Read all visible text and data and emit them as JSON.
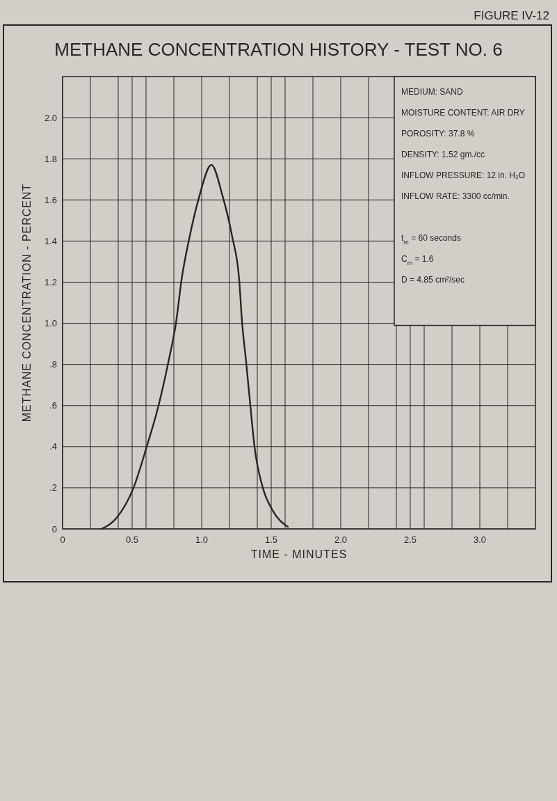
{
  "chart_data": {
    "type": "line",
    "title": "METHANE CONCENTRATION HISTORY - TEST NO. 6",
    "xlabel": "TIME - MINUTES",
    "ylabel": "METHANE CONCENTRATION - PERCENT",
    "annotations": [
      "FIGURE IV-12",
      "MEDIUM: SAND",
      "MOISTURE CONTENT: AIR DRY",
      "POROSITY: 37.8 %",
      "DENSITY: 1.52 gm./cc",
      "INFLOW PRESSURE: 12 in. H₂O",
      "INFLOW RATE: 3300 cc/min.",
      "t$_{m}$ = 60 seconds",
      "C$_{m}$ = 1.6",
      "D = 4.85 cm²/sec"
    ],
    "series": [
      {
        "color": "#2a2522",
        "x": [
          0.28,
          0.39,
          0.51,
          0.605,
          0.69,
          0.76,
          0.815,
          0.855,
          0.91,
          0.98,
          1.07,
          1.15,
          1.22,
          1.27,
          1.29,
          1.32,
          1.35,
          1.38,
          1.44,
          1.51,
          1.62
        ],
        "values": [
          0,
          0.055,
          0.2,
          0.4,
          0.6,
          0.81,
          1.0,
          1.21,
          1.41,
          1.61,
          1.77,
          1.62,
          1.42,
          1.21,
          1.01,
          0.81,
          0.6,
          0.4,
          0.2,
          0.09,
          0.01
        ]
      }
    ],
    "xlim": [
      0,
      3.4
    ],
    "xticks": [
      0,
      {
        "value": 0.2,
        "label": null
      },
      {
        "value": 0.4,
        "label": null
      },
      0.5,
      {
        "value": 0.6,
        "label": null
      },
      {
        "value": 0.8,
        "label": null
      },
      {
        "value": 1,
        "label": "1.0"
      },
      {
        "value": 1.2,
        "label": null
      },
      {
        "value": 1.4,
        "label": null
      },
      1.5,
      {
        "value": 1.6,
        "label": null
      },
      {
        "value": 1.8,
        "label": null
      },
      {
        "value": 2,
        "label": "2.0"
      },
      {
        "value": 2.2,
        "label": null
      },
      {
        "value": 2.4,
        "label": null
      },
      2.5,
      {
        "value": 2.6,
        "label": null
      },
      {
        "value": 2.8,
        "label": null
      },
      {
        "value": 3,
        "label": "3.0"
      },
      {
        "value": 3.2,
        "label": null
      }
    ],
    "ylim": [
      0,
      2.2
    ],
    "yticks": [
      0,
      {
        "value": 0.2,
        "label": ".2"
      },
      {
        "value": 0.4,
        "label": ".4"
      },
      {
        "value": 0.6,
        "label": ".6"
      },
      {
        "value": 0.8,
        "label": ".8"
      },
      {
        "value": 1,
        "label": "1.0"
      },
      1.2,
      1.4,
      1.6,
      1.8,
      {
        "value": 2,
        "label": "2.0"
      }
    ],
    "grid": true,
    "marker": "none",
    "line_style": "solid"
  }
}
